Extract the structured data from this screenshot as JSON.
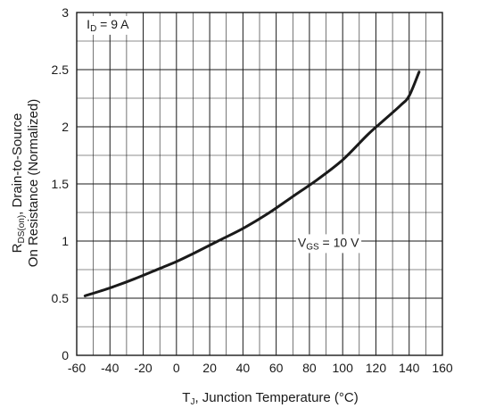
{
  "chart_data": {
    "type": "line",
    "xlabel": {
      "main": "T",
      "sub": "J",
      "rest": ", Junction Temperature (°C)"
    },
    "ylabel": {
      "line1": {
        "main": "R",
        "sub": "DS(on)",
        "rest": ", Drain-to-Source"
      },
      "line2": "On Resistance (Normalized)"
    },
    "xlim": [
      -60,
      160
    ],
    "ylim": [
      0,
      3
    ],
    "x_ticks": [
      -60,
      -40,
      -20,
      0,
      20,
      40,
      60,
      80,
      100,
      120,
      140,
      160
    ],
    "x_tick_labels": [
      "-60",
      "-40",
      "-20",
      "0",
      "20",
      "40",
      "60",
      "80",
      "100",
      "120",
      "140",
      "160"
    ],
    "y_ticks": [
      0,
      0.5,
      1,
      1.5,
      2,
      2.5,
      3
    ],
    "y_tick_labels": [
      "0",
      "0.5",
      "1",
      "1.5",
      "2",
      "2.5",
      "3"
    ],
    "grid": true,
    "annotations": [
      {
        "main": "I",
        "sub": "D",
        "rest": " = 9 A"
      },
      {
        "main": "V",
        "sub": "GS",
        "rest": " = 10 V"
      }
    ],
    "series": [
      {
        "x": [
          -55,
          -40,
          -25,
          -10,
          0,
          10,
          25,
          40,
          55,
          70,
          85,
          100,
          115,
          125,
          135,
          140,
          146
        ],
        "y": [
          0.52,
          0.59,
          0.67,
          0.76,
          0.82,
          0.89,
          1.0,
          1.11,
          1.24,
          1.39,
          1.54,
          1.71,
          1.93,
          2.06,
          2.19,
          2.27,
          2.48
        ]
      }
    ]
  }
}
